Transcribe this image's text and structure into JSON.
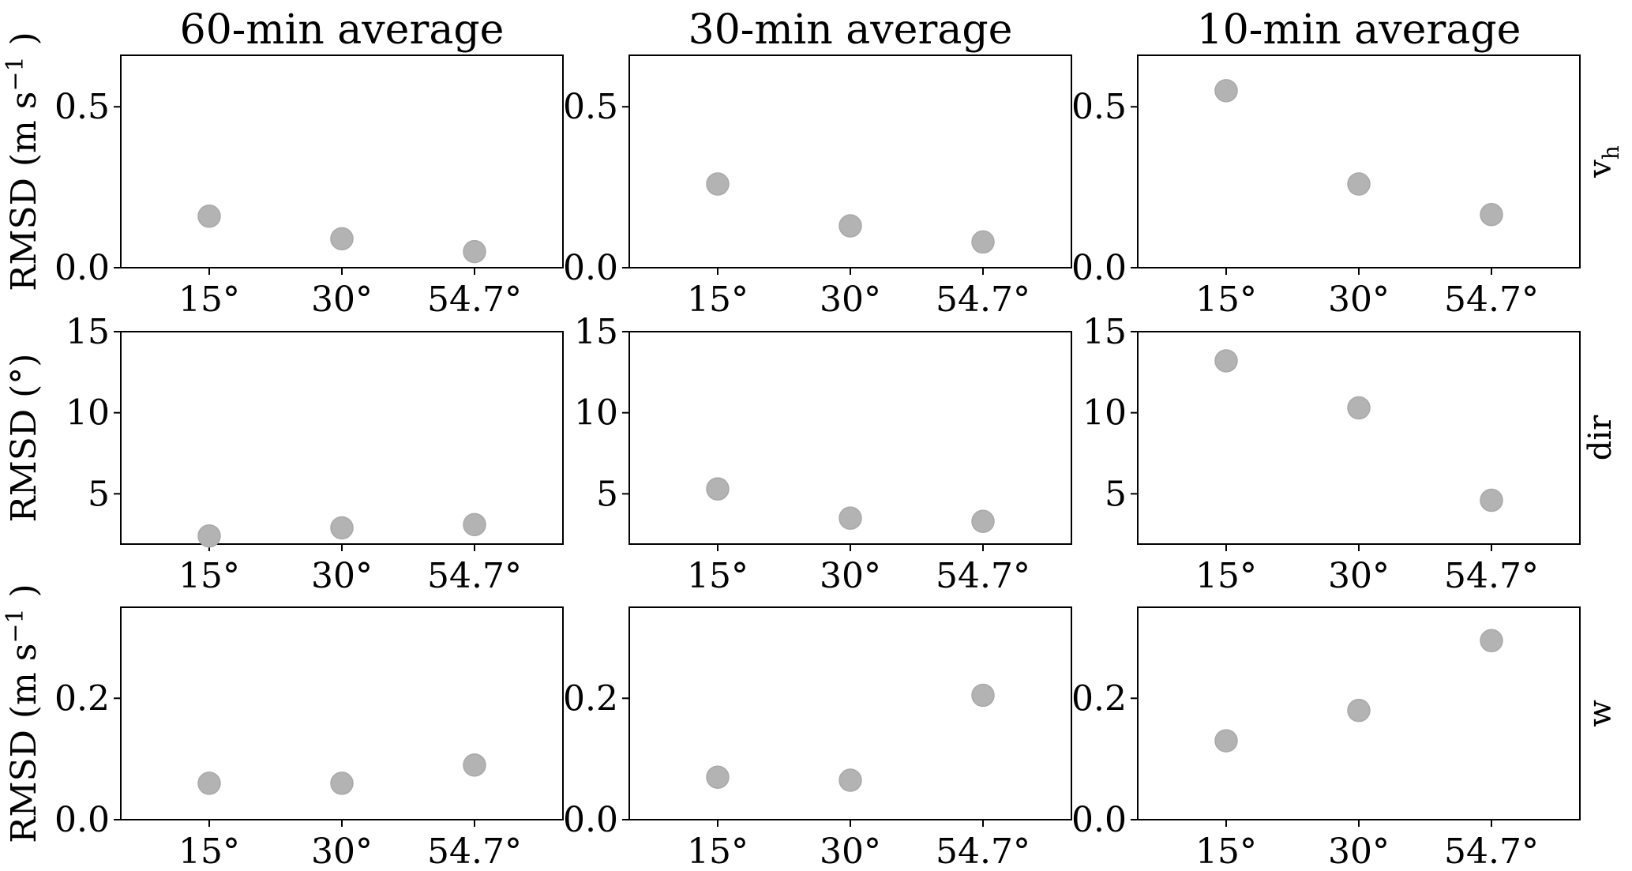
{
  "chart_data": {
    "type": "scatter",
    "columns": [
      "60-min average",
      "30-min average",
      "10-min average"
    ],
    "categories": [
      "15°",
      "30°",
      "54.7°"
    ],
    "marker_color": "#b3b3b3",
    "rows": [
      {
        "label": "v",
        "label_subscript": "h",
        "ylabel": "RMSD (m s",
        "ylabel_sup": "−1",
        "ylabel_end": " )",
        "ylim": [
          0,
          0.66
        ],
        "yticks": [
          0.0,
          0.5
        ],
        "ytick_labels": [
          "0.0",
          "0.5"
        ],
        "values": [
          [
            0.16,
            0.09,
            0.05
          ],
          [
            0.26,
            0.13,
            0.08
          ],
          [
            0.55,
            0.26,
            0.165
          ]
        ]
      },
      {
        "label": "dir",
        "ylabel": "RMSD (°)",
        "ylim": [
          1.9,
          15
        ],
        "yticks": [
          5,
          10,
          15
        ],
        "ytick_labels": [
          "5",
          "10",
          "15"
        ],
        "values": [
          [
            2.4,
            2.9,
            3.1
          ],
          [
            5.3,
            3.5,
            3.3
          ],
          [
            13.2,
            10.3,
            4.6
          ]
        ]
      },
      {
        "label": "w",
        "ylabel": "RMSD (m s",
        "ylabel_sup": "−1",
        "ylabel_end": " )",
        "ylim": [
          0,
          0.35
        ],
        "yticks": [
          0.0,
          0.2
        ],
        "ytick_labels": [
          "0.0",
          "0.2"
        ],
        "values": [
          [
            0.06,
            0.06,
            0.09
          ],
          [
            0.07,
            0.065,
            0.205
          ],
          [
            0.13,
            0.18,
            0.295
          ]
        ]
      }
    ]
  }
}
